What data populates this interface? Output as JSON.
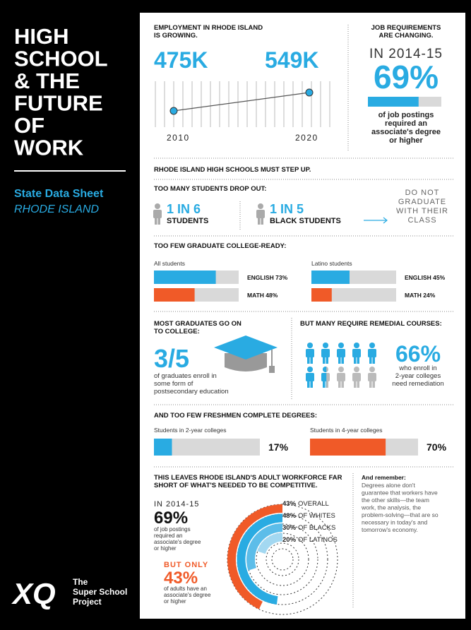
{
  "sidebar": {
    "title_lines": [
      "HIGH",
      "SCHOOL",
      "& THE",
      "FUTURE",
      "OF",
      "WORK"
    ],
    "subtitle": "State Data Sheet",
    "state": "RHODE ISLAND",
    "logo": "XQ",
    "logo_lines": [
      "The",
      "Super School",
      "Project"
    ]
  },
  "employment": {
    "title_lines": [
      "EMPLOYMENT IN RHODE ISLAND",
      "IS GROWING."
    ],
    "start": "475K",
    "end": "549K",
    "years": [
      "2010",
      "2020"
    ]
  },
  "requirements": {
    "title_lines": [
      "JOB REQUIREMENTS",
      "ARE CHANGING."
    ],
    "period": "IN 2014-15",
    "value": 69,
    "value_label": "69%",
    "color": "#29abe2",
    "note_lines": [
      "of job postings",
      "required an",
      "associate's degree",
      "or higher"
    ]
  },
  "step_up": "RHODE ISLAND HIGH SCHOOLS MUST STEP UP.",
  "dropout": {
    "title": "TOO MANY STUDENTS DROP OUT:",
    "groups": [
      {
        "ratio": "1 IN 6",
        "label": "STUDENTS"
      },
      {
        "ratio": "1 IN 5",
        "label": "BLACK STUDENTS"
      }
    ],
    "outcome_lines": [
      "DO NOT",
      "GRADUATE",
      "WITH THEIR",
      "CLASS"
    ]
  },
  "college_ready": {
    "title": "TOO FEW GRADUATE COLLEGE-READY:",
    "groups": [
      {
        "name": "All students",
        "bars": [
          {
            "label": "ENGLISH 73%",
            "value": 73,
            "color": "#29abe2"
          },
          {
            "label": "MATH 48%",
            "value": 48,
            "color": "#f05a28"
          }
        ]
      },
      {
        "name": "Latino students",
        "bars": [
          {
            "label": "ENGLISH 45%",
            "value": 45,
            "color": "#29abe2"
          },
          {
            "label": "MATH 24%",
            "value": 24,
            "color": "#f05a28"
          }
        ]
      }
    ]
  },
  "enrollment": {
    "title_lines": [
      "MOST GRADUATES GO ON",
      "TO COLLEGE:"
    ],
    "fraction": "3/5",
    "note_lines": [
      "of graduates enroll in",
      "some form of",
      "postsecondary education"
    ]
  },
  "remediation": {
    "title": "BUT MANY REQUIRE REMEDIAL COURSES:",
    "value": 66,
    "value_label": "66%",
    "color": "#29abe2",
    "note_lines": [
      "who enroll in",
      "2-year colleges",
      "need remediation"
    ]
  },
  "completion": {
    "title": "AND TOO FEW FRESHMEN COMPLETE DEGREES:",
    "groups": [
      {
        "name": "Students in 2-year colleges",
        "value": 17,
        "value_label": "17%",
        "color": "#29abe2"
      },
      {
        "name": "Students in 4-year colleges",
        "value": 70,
        "value_label": "70%",
        "color": "#f05a28"
      }
    ]
  },
  "workforce": {
    "title_lines": [
      "THIS LEAVES RHODE ISLAND'S ADULT WORKFORCE FAR",
      "SHORT OF WHAT'S NEEDED TO BE COMPETITIVE."
    ],
    "period": "IN 2014-15",
    "required": {
      "value": 69,
      "value_label": "69%",
      "note_lines": [
        "of job postings",
        "required an",
        "associate's degree",
        "or higher"
      ]
    },
    "contrast": "BUT ONLY",
    "attained": {
      "value": 43,
      "value_label": "43%",
      "note_lines": [
        "of adults have an",
        "associate's degree",
        "or higher"
      ]
    },
    "rings": [
      {
        "value": 43,
        "value_label": "43%",
        "name": "OVERALL",
        "color": "#f05a28"
      },
      {
        "value": 48,
        "value_label": "48%",
        "name": "OF WHITES",
        "color": "#29abe2"
      },
      {
        "value": 30,
        "value_label": "30%",
        "name": "OF BLACKS",
        "color": "#5cbde9"
      },
      {
        "value": 20,
        "value_label": "20%",
        "name": "OF LATINOS",
        "color": "#a3d8f1"
      }
    ]
  },
  "reminder": {
    "title": "And remember:",
    "lines": [
      "Degrees alone don't",
      "guarantee that workers have",
      "the other skills—the team",
      "work, the analysis, the",
      "problem-solving—that are so",
      "necessary in today's and",
      "tomorrow's economy."
    ]
  }
}
